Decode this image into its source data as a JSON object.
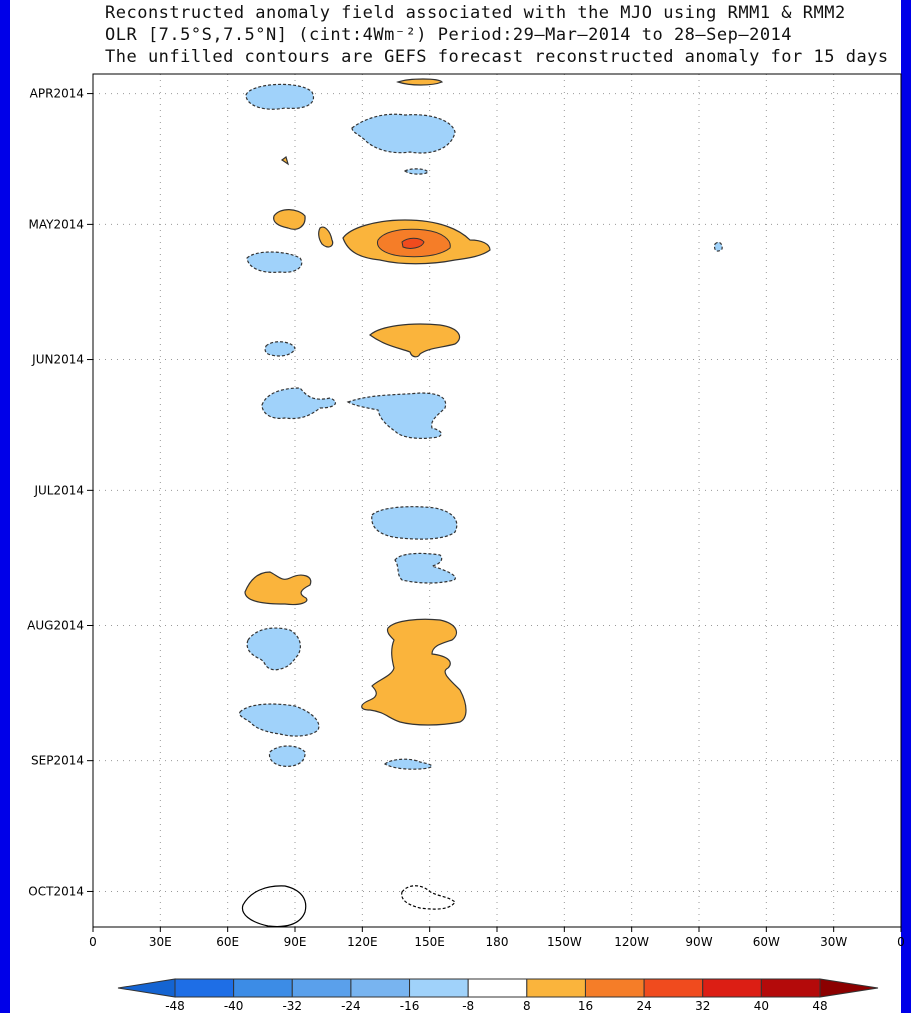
{
  "chart_data": {
    "type": "contour",
    "title": [
      "Reconstructed anomaly field associated with the MJO using RMM1 & RMM2",
      "OLR [7.5°S,7.5°N] (cint:4Wm⁻²) Period:29–Mar–2014 to 28–Sep–2014",
      "The unfilled contours are GEFS forecast reconstructed anomaly for 15 days"
    ],
    "x_ticks": [
      "0",
      "30E",
      "60E",
      "90E",
      "120E",
      "150E",
      "180",
      "150W",
      "120W",
      "90W",
      "60W",
      "30W",
      "0"
    ],
    "x_values": [
      0,
      30,
      60,
      90,
      120,
      150,
      180,
      210,
      240,
      270,
      300,
      330,
      360
    ],
    "xlim": [
      0,
      360
    ],
    "y_ticks": [
      {
        "label": "APR2014",
        "day": 3
      },
      {
        "label": "MAY2014",
        "day": 33
      },
      {
        "label": "JUN2014",
        "day": 64
      },
      {
        "label": "JUL2014",
        "day": 94
      },
      {
        "label": "AUG2014",
        "day": 125
      },
      {
        "label": "SEP2014",
        "day": 156
      },
      {
        "label": "OCT2014",
        "day": 186
      }
    ],
    "ylim_days": [
      0,
      198
    ],
    "grid": true,
    "colorbar": {
      "levels": [
        "-48",
        "-40",
        "-32",
        "-24",
        "-16",
        "-8",
        "8",
        "16",
        "24",
        "32",
        "40",
        "48"
      ],
      "colors": [
        "#1464d2",
        "#1e6ee6",
        "#3c8ce6",
        "#5aa0eb",
        "#78b4f0",
        "#a0d2fa",
        "#ffffff",
        "#fab43c",
        "#f57d28",
        "#f04b1e",
        "#dc1e14",
        "#b40a0a",
        "#8c0000"
      ]
    },
    "fill_colors": {
      "neg8": "#a0d2fa",
      "pos8": "#fab43c",
      "pos16": "#f57d28",
      "pos24": "#f04b1e"
    }
  }
}
